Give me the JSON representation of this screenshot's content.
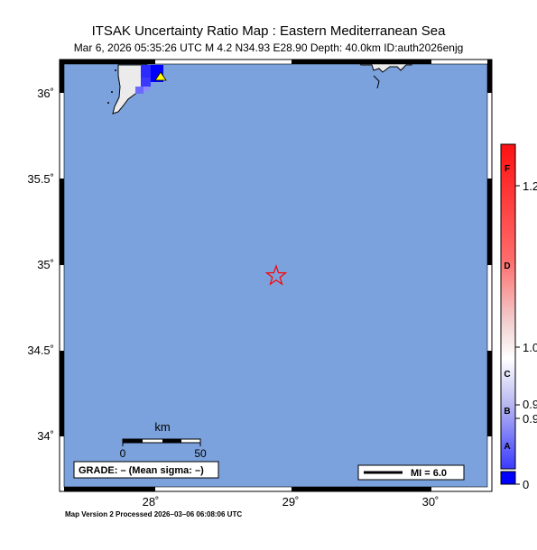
{
  "header": {
    "title": "ITSAK Uncertainty Ratio Map : Eastern Mediterranean Sea",
    "subtitle": "Mar  6, 2026 05:35:26 UTC   M 4.2   N34.93 E28.90   Depth: 40.0km   ID:auth2026enjg"
  },
  "map": {
    "sea_color": "#7ba2dc",
    "land_color": "#ebebeb",
    "lat_labels": [
      "36˚",
      "35.5˚",
      "35˚",
      "34.5˚",
      "34˚"
    ],
    "lon_labels": [
      "28˚",
      "29˚",
      "30˚"
    ],
    "epicenter": {
      "lat": 34.93,
      "lon": 28.9,
      "icon": "star-icon",
      "color": "#ff0000"
    },
    "station": {
      "icon": "triangle-icon",
      "color": "#ffff00"
    }
  },
  "scalebar": {
    "unit_label": "km",
    "tick_left": "0",
    "tick_right": "50"
  },
  "grade_box": {
    "text": "GRADE: – (Mean sigma: –)"
  },
  "legend": {
    "label": "MI = 6.0"
  },
  "colorbar": {
    "letters": [
      "F",
      "D",
      "C",
      "B",
      "A"
    ],
    "values": [
      "1.2",
      "1.0",
      "0.9",
      "0.9",
      "0"
    ],
    "colors": {
      "top": "#ff0000",
      "mid": "#ffffff",
      "bottom": "#0000ff"
    }
  },
  "footer": {
    "text": "Map Version 2 Processed 2026–03–06 06:08:06 UTC"
  }
}
